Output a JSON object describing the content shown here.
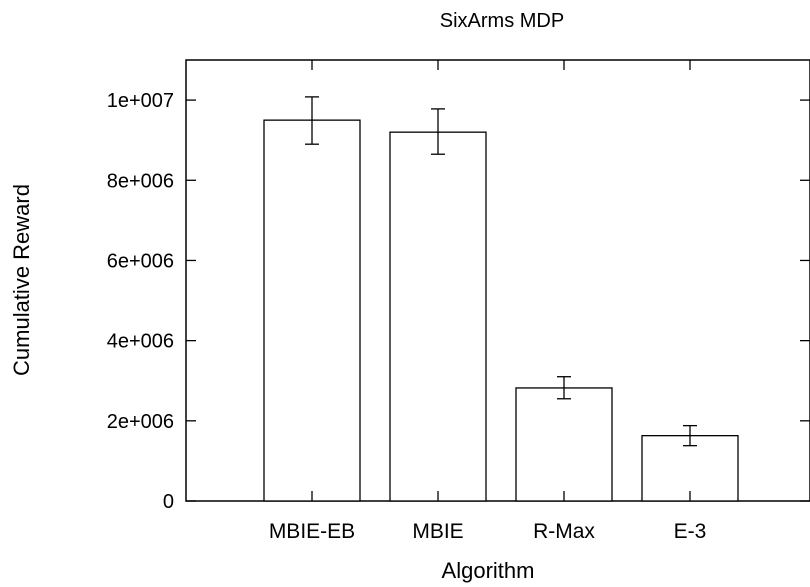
{
  "chart_data": {
    "type": "bar",
    "title": "SixArms MDP",
    "xlabel": "Algorithm",
    "ylabel": "Cumulative Reward",
    "categories": [
      "MBIE-EB",
      "MBIE",
      "R-Max",
      "E-3"
    ],
    "values": [
      9500000,
      9200000,
      2820000,
      1630000
    ],
    "error_low": [
      8900000,
      8650000,
      2550000,
      1380000
    ],
    "error_high": [
      10080000,
      9780000,
      3100000,
      1880000
    ],
    "ylim": [
      0,
      11000000
    ],
    "yticks": [
      {
        "value": 0,
        "label": "0"
      },
      {
        "value": 2000000,
        "label": "2e+006"
      },
      {
        "value": 4000000,
        "label": "4e+006"
      },
      {
        "value": 6000000,
        "label": "6e+006"
      },
      {
        "value": 8000000,
        "label": "8e+006"
      },
      {
        "value": 10000000,
        "label": "1e+007"
      }
    ],
    "grid": false,
    "legend": "none"
  }
}
